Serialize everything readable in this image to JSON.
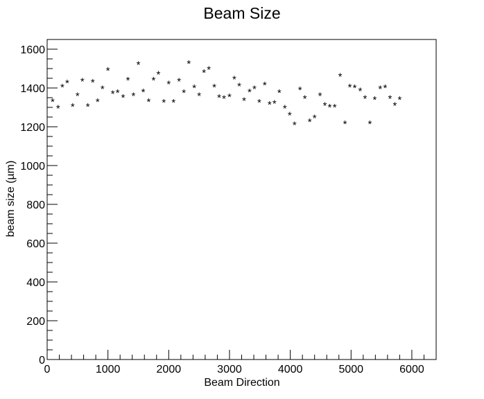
{
  "chart_data": {
    "type": "scatter",
    "title": "Beam Size",
    "xlabel": "Beam Direction",
    "ylabel": "beam size (µm)",
    "marker": "*",
    "xlim": [
      0,
      6400
    ],
    "ylim": [
      0,
      1650
    ],
    "xticks": [
      0,
      1000,
      2000,
      3000,
      4000,
      5000,
      6000
    ],
    "yticks": [
      0,
      200,
      400,
      600,
      800,
      1000,
      1200,
      1400,
      1600
    ],
    "xtick_labels": [
      "0",
      "1000",
      "2000",
      "3000",
      "4000",
      "5000",
      "6000"
    ],
    "ytick_labels": [
      "0",
      "200",
      "400",
      "600",
      "800",
      "1000",
      "1200",
      "1400",
      "1600"
    ],
    "series": [
      {
        "name": "beam size",
        "x": [
          90,
          180,
          250,
          330,
          420,
          500,
          580,
          670,
          750,
          830,
          910,
          1000,
          1080,
          1160,
          1250,
          1330,
          1420,
          1500,
          1580,
          1670,
          1750,
          1830,
          1920,
          2000,
          2080,
          2170,
          2250,
          2330,
          2420,
          2500,
          2580,
          2660,
          2750,
          2830,
          2910,
          3000,
          3080,
          3160,
          3240,
          3330,
          3410,
          3490,
          3580,
          3660,
          3740,
          3820,
          3910,
          3990,
          4070,
          4160,
          4240,
          4320,
          4400,
          4490,
          4570,
          4650,
          4730,
          4820,
          4900,
          4980,
          5060,
          5150,
          5230,
          5310,
          5390,
          5480,
          5560,
          5640,
          5720,
          5800
        ],
        "y": [
          1340,
          1305,
          1415,
          1435,
          1315,
          1370,
          1445,
          1315,
          1440,
          1340,
          1405,
          1500,
          1380,
          1385,
          1360,
          1450,
          1370,
          1530,
          1390,
          1340,
          1450,
          1480,
          1335,
          1430,
          1335,
          1445,
          1385,
          1535,
          1410,
          1370,
          1490,
          1505,
          1415,
          1360,
          1355,
          1365,
          1455,
          1420,
          1345,
          1390,
          1405,
          1335,
          1425,
          1325,
          1330,
          1385,
          1305,
          1270,
          1220,
          1400,
          1355,
          1235,
          1255,
          1370,
          1320,
          1310,
          1310,
          1470,
          1225,
          1415,
          1410,
          1395,
          1355,
          1225,
          1350,
          1405,
          1410,
          1355,
          1320,
          1350
        ]
      }
    ]
  }
}
